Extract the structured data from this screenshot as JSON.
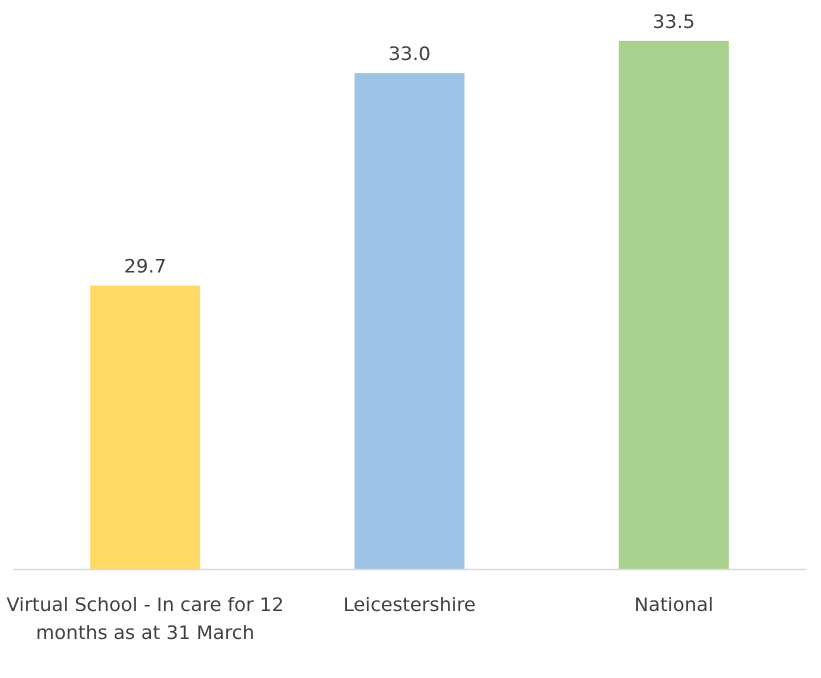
{
  "chart_data": {
    "type": "bar",
    "categories": [
      "Virtual School - In care for 12 months as at 31 March",
      "Leicestershire",
      "National"
    ],
    "values": [
      29.7,
      33.0,
      33.5
    ],
    "data_labels": [
      "29.7",
      "33.0",
      "33.5"
    ],
    "colors": [
      "#FFD966",
      "#9DC3E6",
      "#A9D18E"
    ],
    "ylim": [
      25.3,
      33.7
    ],
    "grid": false,
    "legend": "none",
    "axis_color": "#D9D9D9",
    "label_color": "#404040"
  }
}
